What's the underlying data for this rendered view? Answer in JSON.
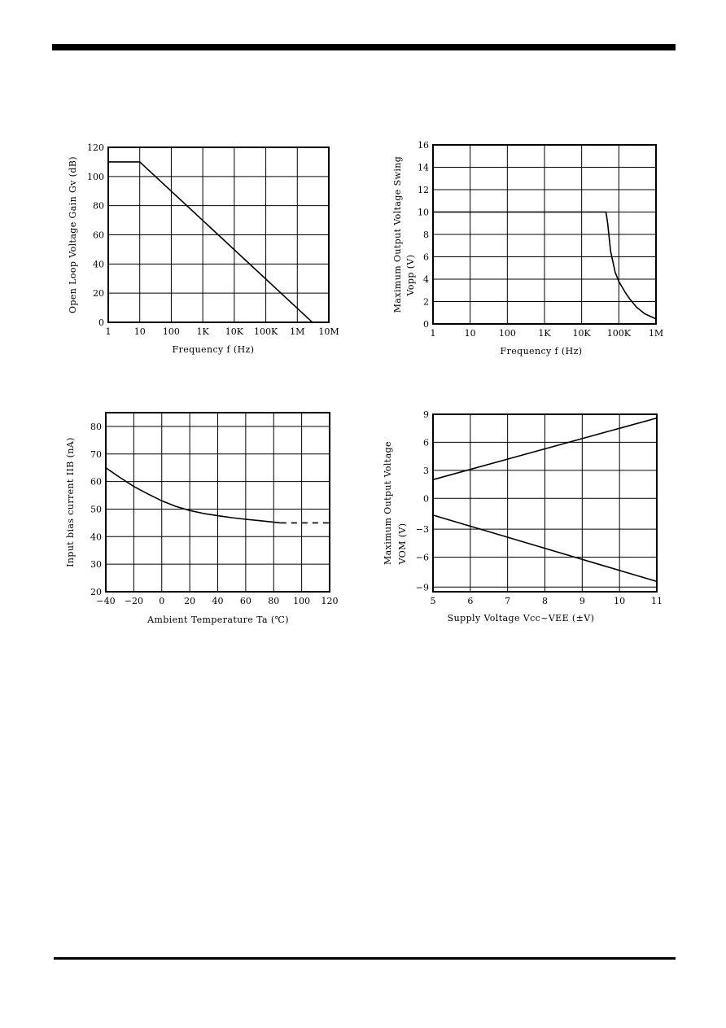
{
  "chart_data": [
    {
      "type": "line",
      "xlabel": "Frequency    f    (Hz)",
      "ylabel": "Open  Loop  Voltage  Gain    Gv (dB)",
      "xscale": "log",
      "xlim": [
        1,
        10000000
      ],
      "ylim": [
        0,
        120
      ],
      "xticks": [
        1,
        10,
        100,
        1000,
        10000,
        100000,
        1000000,
        10000000
      ],
      "xtick_labels": [
        "1",
        "10",
        "100",
        "1K",
        "10K",
        "100K",
        "1M",
        "10M"
      ],
      "yticks": [
        0,
        20,
        40,
        60,
        80,
        100,
        120
      ],
      "grid": true,
      "series": [
        {
          "x": [
            1,
            10,
            3000000
          ],
          "y": [
            110,
            110,
            0
          ]
        }
      ]
    },
    {
      "type": "line",
      "xlabel": "Frequency    f    (Hz)",
      "ylabel": "Maximum  Output  Voltage  Swing",
      "ylabel2": "Vopp    (V)",
      "xscale": "log",
      "xlim": [
        1,
        1000000
      ],
      "ylim": [
        0,
        16
      ],
      "xticks": [
        1,
        10,
        100,
        1000,
        10000,
        100000,
        1000000
      ],
      "xtick_labels": [
        "1",
        "10",
        "100",
        "1K",
        "10K",
        "100K",
        "1M"
      ],
      "yticks": [
        0,
        2,
        4,
        6,
        8,
        10,
        12,
        14,
        16
      ],
      "grid": true,
      "series": [
        {
          "x": [
            1,
            45000,
            50000,
            60000,
            80000,
            100000,
            150000,
            200000,
            300000,
            500000,
            1000000
          ],
          "y": [
            10,
            10,
            9,
            6.5,
            4.6,
            3.8,
            2.8,
            2.2,
            1.5,
            0.9,
            0.45
          ]
        }
      ]
    },
    {
      "type": "line",
      "xlabel": "Ambient  Temperature    Ta (℃)",
      "ylabel": "Input  bias  current    IIB  (nA)",
      "xlim": [
        -40,
        120
      ],
      "ylim": [
        20,
        85
      ],
      "xticks": [
        -40,
        -20,
        0,
        20,
        40,
        60,
        80,
        100,
        120
      ],
      "xtick_labels": [
        "−40",
        "−20",
        "0",
        "20",
        "40",
        "60",
        "80",
        "100",
        "120"
      ],
      "yticks": [
        20,
        30,
        40,
        50,
        60,
        70,
        80
      ],
      "grid": true,
      "series": [
        {
          "x": [
            -40,
            -30,
            -20,
            -10,
            0,
            10,
            20,
            30,
            40,
            50,
            60,
            70,
            85
          ],
          "y": [
            65,
            61.5,
            58.2,
            55.5,
            53,
            51,
            49.5,
            48.4,
            47.6,
            46.9,
            46.3,
            45.8,
            45
          ],
          "style": "solid"
        },
        {
          "x": [
            85,
            120
          ],
          "y": [
            45,
            45
          ],
          "style": "dashed"
        }
      ]
    },
    {
      "type": "line",
      "xlabel": "Supply  Voltage",
      "xlabel_unit": "Vcc~VEE (±V)",
      "ylabel": "Maximum  Output  Voltage",
      "ylabel2": "VOM  (V)",
      "xlim": [
        5,
        11
      ],
      "ylim": [
        -10,
        9
      ],
      "xticks": [
        5,
        6,
        7,
        8,
        9,
        10,
        11
      ],
      "yticks": [
        9,
        6,
        3,
        0,
        -3,
        -6,
        -9
      ],
      "ytick_pos": [
        9,
        6,
        3,
        0,
        -3.3,
        -6.3,
        -9.5
      ],
      "ytick_labels": [
        "9",
        "6",
        "3",
        "0",
        "−3",
        "−6",
        "−9"
      ],
      "grid": true,
      "series": [
        {
          "x": [
            5,
            11
          ],
          "y": [
            2,
            8.6
          ]
        },
        {
          "x": [
            5,
            11
          ],
          "y": [
            -1.8,
            -8.9
          ]
        }
      ]
    }
  ]
}
